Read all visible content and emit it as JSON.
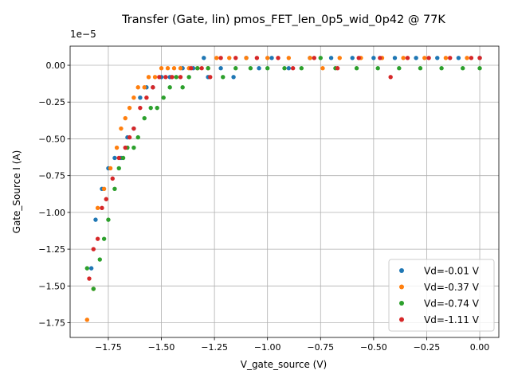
{
  "chart_data": {
    "type": "scatter",
    "title": "Transfer (Gate, lin) pmos_FET_len_0p5_wid_0p42 @ 77K",
    "xlabel": "V_gate_source (V)",
    "ylabel": "Gate_Source I (A)",
    "y_offset_label": "1e−5",
    "y_scale": 1e-05,
    "xlim": [
      -1.93,
      0.09
    ],
    "ylim": [
      -1.85,
      0.13
    ],
    "xticks": [
      -1.75,
      -1.5,
      -1.25,
      -1.0,
      -0.75,
      -0.5,
      -0.25,
      0.0
    ],
    "xtick_labels": [
      "−1.75",
      "−1.50",
      "−1.25",
      "−1.00",
      "−0.75",
      "−0.50",
      "−0.25",
      "0.00"
    ],
    "yticks": [
      0.0,
      -0.25,
      -0.5,
      -0.75,
      -1.0,
      -1.25,
      -1.5,
      -1.75
    ],
    "ytick_labels": [
      "0.00",
      "−0.25",
      "−0.50",
      "−0.75",
      "−1.00",
      "−1.25",
      "−1.50",
      "−1.75"
    ],
    "grid": true,
    "legend_position": "lower-right",
    "series": [
      {
        "name": "Vd=-0.01 V",
        "color": "#1f77b4",
        "points": [
          [
            -1.83,
            -1.38
          ],
          [
            -1.81,
            -1.05
          ],
          [
            -1.78,
            -0.84
          ],
          [
            -1.75,
            -0.7
          ],
          [
            -1.72,
            -0.63
          ],
          [
            -1.69,
            -0.63
          ],
          [
            -1.66,
            -0.49
          ],
          [
            -1.63,
            -0.43
          ],
          [
            -1.6,
            -0.22
          ],
          [
            -1.57,
            -0.15
          ],
          [
            -1.54,
            -0.15
          ],
          [
            -1.5,
            -0.08
          ],
          [
            -1.46,
            -0.08
          ],
          [
            -1.4,
            -0.02
          ],
          [
            -1.35,
            -0.02
          ],
          [
            -1.3,
            0.05
          ],
          [
            -1.28,
            -0.08
          ],
          [
            -1.22,
            -0.02
          ],
          [
            -1.16,
            -0.08
          ],
          [
            -1.1,
            0.05
          ],
          [
            -1.04,
            -0.02
          ],
          [
            -0.98,
            0.05
          ],
          [
            -0.9,
            -0.02
          ],
          [
            -0.8,
            0.05
          ],
          [
            -0.7,
            0.05
          ],
          [
            -0.6,
            0.05
          ],
          [
            -0.5,
            0.05
          ],
          [
            -0.4,
            0.05
          ],
          [
            -0.3,
            0.05
          ],
          [
            -0.2,
            0.05
          ],
          [
            -0.1,
            0.05
          ],
          [
            0.0,
            0.05
          ]
        ]
      },
      {
        "name": "Vd=-0.37 V",
        "color": "#ff7f0e",
        "points": [
          [
            -1.85,
            -1.73
          ],
          [
            -1.82,
            -1.52
          ],
          [
            -1.8,
            -0.97
          ],
          [
            -1.77,
            -0.84
          ],
          [
            -1.74,
            -0.7
          ],
          [
            -1.71,
            -0.56
          ],
          [
            -1.69,
            -0.43
          ],
          [
            -1.67,
            -0.36
          ],
          [
            -1.65,
            -0.29
          ],
          [
            -1.63,
            -0.22
          ],
          [
            -1.61,
            -0.15
          ],
          [
            -1.58,
            -0.15
          ],
          [
            -1.56,
            -0.08
          ],
          [
            -1.53,
            -0.08
          ],
          [
            -1.5,
            -0.02
          ],
          [
            -1.47,
            -0.02
          ],
          [
            -1.44,
            -0.02
          ],
          [
            -1.41,
            -0.02
          ],
          [
            -1.37,
            -0.02
          ],
          [
            -1.33,
            -0.02
          ],
          [
            -1.28,
            -0.02
          ],
          [
            -1.24,
            0.05
          ],
          [
            -1.18,
            0.05
          ],
          [
            -1.1,
            0.05
          ],
          [
            -1.0,
            0.05
          ],
          [
            -0.9,
            0.05
          ],
          [
            -0.8,
            0.05
          ],
          [
            -0.74,
            -0.02
          ],
          [
            -0.66,
            0.05
          ],
          [
            -0.56,
            0.05
          ],
          [
            -0.46,
            0.05
          ],
          [
            -0.36,
            0.05
          ],
          [
            -0.26,
            0.05
          ],
          [
            -0.16,
            0.05
          ],
          [
            -0.06,
            0.05
          ]
        ]
      },
      {
        "name": "Vd=-0.74 V",
        "color": "#2ca02c",
        "points": [
          [
            -1.85,
            -1.38
          ],
          [
            -1.82,
            -1.52
          ],
          [
            -1.79,
            -1.32
          ],
          [
            -1.77,
            -1.18
          ],
          [
            -1.75,
            -1.05
          ],
          [
            -1.72,
            -0.84
          ],
          [
            -1.7,
            -0.7
          ],
          [
            -1.68,
            -0.63
          ],
          [
            -1.66,
            -0.56
          ],
          [
            -1.63,
            -0.56
          ],
          [
            -1.61,
            -0.49
          ],
          [
            -1.58,
            -0.36
          ],
          [
            -1.55,
            -0.29
          ],
          [
            -1.52,
            -0.29
          ],
          [
            -1.49,
            -0.22
          ],
          [
            -1.46,
            -0.15
          ],
          [
            -1.43,
            -0.08
          ],
          [
            -1.4,
            -0.15
          ],
          [
            -1.37,
            -0.08
          ],
          [
            -1.33,
            -0.02
          ],
          [
            -1.28,
            -0.02
          ],
          [
            -1.21,
            -0.08
          ],
          [
            -1.15,
            -0.02
          ],
          [
            -1.08,
            -0.02
          ],
          [
            -1.0,
            -0.02
          ],
          [
            -0.92,
            -0.02
          ],
          [
            -0.84,
            -0.02
          ],
          [
            -0.75,
            0.05
          ],
          [
            -0.68,
            -0.02
          ],
          [
            -0.58,
            -0.02
          ],
          [
            -0.48,
            -0.02
          ],
          [
            -0.38,
            -0.02
          ],
          [
            -0.28,
            -0.02
          ],
          [
            -0.18,
            -0.02
          ],
          [
            -0.08,
            -0.02
          ],
          [
            0.0,
            -0.02
          ]
        ]
      },
      {
        "name": "Vd=-1.11 V",
        "color": "#d62728",
        "points": [
          [
            -1.84,
            -1.45
          ],
          [
            -1.82,
            -1.25
          ],
          [
            -1.8,
            -1.18
          ],
          [
            -1.78,
            -0.97
          ],
          [
            -1.76,
            -0.91
          ],
          [
            -1.73,
            -0.77
          ],
          [
            -1.7,
            -0.63
          ],
          [
            -1.67,
            -0.56
          ],
          [
            -1.65,
            -0.49
          ],
          [
            -1.63,
            -0.43
          ],
          [
            -1.6,
            -0.29
          ],
          [
            -1.57,
            -0.22
          ],
          [
            -1.54,
            -0.15
          ],
          [
            -1.51,
            -0.08
          ],
          [
            -1.48,
            -0.08
          ],
          [
            -1.45,
            -0.08
          ],
          [
            -1.41,
            -0.08
          ],
          [
            -1.36,
            -0.02
          ],
          [
            -1.31,
            -0.02
          ],
          [
            -1.27,
            -0.08
          ],
          [
            -1.22,
            0.05
          ],
          [
            -1.15,
            0.05
          ],
          [
            -1.05,
            0.05
          ],
          [
            -0.95,
            0.05
          ],
          [
            -0.88,
            -0.02
          ],
          [
            -0.78,
            0.05
          ],
          [
            -0.67,
            -0.02
          ],
          [
            -0.57,
            0.05
          ],
          [
            -0.47,
            0.05
          ],
          [
            -0.42,
            -0.08
          ],
          [
            -0.34,
            0.05
          ],
          [
            -0.24,
            0.05
          ],
          [
            -0.14,
            0.05
          ],
          [
            -0.04,
            0.05
          ],
          [
            0.0,
            0.05
          ]
        ]
      }
    ]
  }
}
